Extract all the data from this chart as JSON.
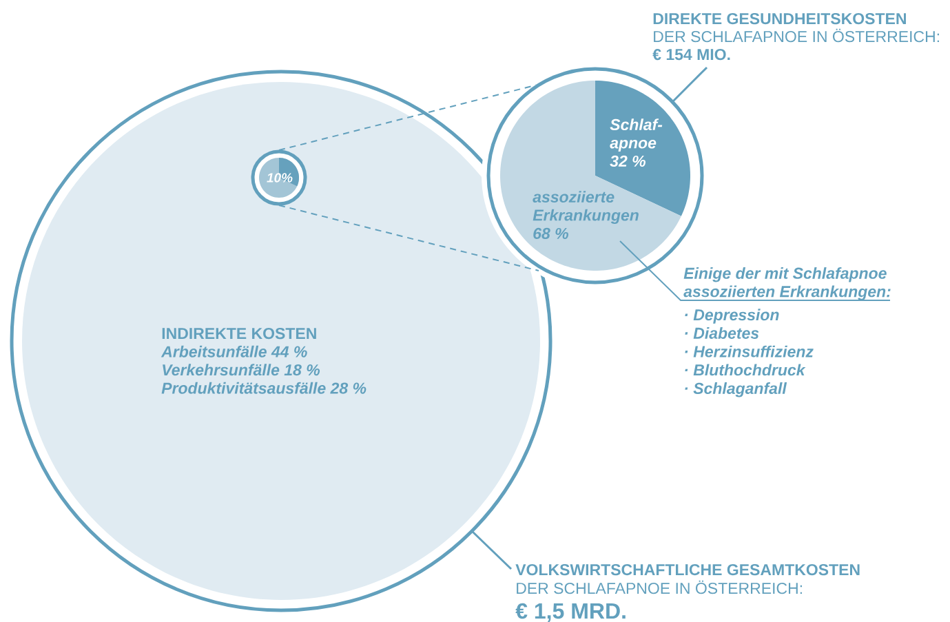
{
  "chart_data": [
    {
      "type": "other",
      "title": "VOLKSWIRTSCHAFTLICHE GESAMTKOSTEN",
      "subtitle": "DER SCHLAFAPNOE IN ÖSTERREICH:",
      "annotations": [
        "€ 1,5 MRD.",
        "INDIREKTE KOSTEN",
        "Arbeitsunfälle 44 %",
        "Verkehrsunfälle 18 %",
        "Produktivitätsausfälle 28 %",
        "10%"
      ]
    },
    {
      "type": "pie",
      "title": "DIREKTE GESUNDHEITSKOSTEN",
      "subtitle": "DER  SCHLAFAPNOE IN ÖSTERREICH:",
      "categories": [
        "Schlaf-apnoe",
        "assoziierte Erkrankungen"
      ],
      "values": [
        32,
        68
      ],
      "colors": [
        "#66a1bd",
        "#c2d8e4"
      ],
      "value_labels": [
        "32 %",
        "68 %"
      ],
      "annotations": [
        "€ 154 MIO.",
        "Einige der mit Schlafapnoe assoziierten Erkrankungen:",
        "· Depression",
        "· Diabetes",
        "· Herzinsuffizienz",
        "· Bluthochdruck",
        "· Schlaganfall"
      ]
    }
  ]
}
